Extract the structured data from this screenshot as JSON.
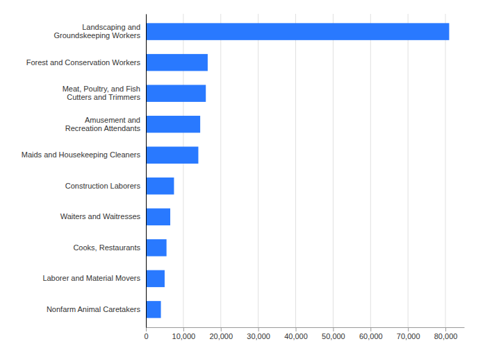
{
  "chart_data": {
    "type": "bar",
    "orientation": "horizontal",
    "categories": [
      "Nonfarm Animal Caretakers",
      "Laborer and Material Movers",
      "Cooks, Restaurants",
      "Waiters and Waitresses",
      "Construction Laborers",
      "Maids and Housekeeping Cleaners",
      "Amusement and\nRecreation Attendants",
      "Meat, Poultry, and Fish\nCutters and Trimmers",
      "Forest and Conservation Workers",
      "Landscaping and\nGroundskeeping Workers"
    ],
    "values": [
      4000,
      5000,
      5500,
      6500,
      7500,
      14000,
      14500,
      16000,
      16500,
      81000
    ],
    "color": "#2979FF",
    "xlim": [
      0,
      85000
    ],
    "xticks": [
      0,
      {
        "value": 10000,
        "label": "10,000"
      },
      {
        "value": 20000,
        "label": "20,000"
      },
      {
        "value": 30000,
        "label": "30,000"
      },
      {
        "value": 40000,
        "label": "40,000"
      },
      {
        "value": 50000,
        "label": "50,000"
      },
      {
        "value": 60000,
        "label": "60,000"
      },
      {
        "value": 70000,
        "label": "70,000"
      },
      {
        "value": 80000,
        "label": "80,000"
      }
    ],
    "grid": true
  }
}
